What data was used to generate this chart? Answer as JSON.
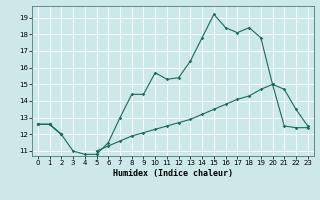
{
  "xlabel": "Humidex (Indice chaleur)",
  "bg_color": "#cce8e8",
  "grid_color": "#ffffff",
  "line_color": "#1a6b5a",
  "xlim": [
    -0.5,
    23.5
  ],
  "ylim": [
    10.7,
    19.7
  ],
  "yticks": [
    11,
    12,
    13,
    14,
    15,
    16,
    17,
    18,
    19
  ],
  "xticks": [
    0,
    1,
    2,
    3,
    4,
    5,
    6,
    7,
    8,
    9,
    10,
    11,
    12,
    13,
    14,
    15,
    16,
    17,
    18,
    19,
    20,
    21,
    22,
    23
  ],
  "line1_x": [
    0,
    1,
    2,
    3,
    4,
    5,
    6,
    7,
    8,
    9,
    10,
    11,
    12,
    13,
    14,
    15,
    16,
    17,
    18,
    19,
    20,
    21,
    22,
    23
  ],
  "line1_y": [
    12.6,
    12.6,
    12.0,
    null,
    null,
    10.8,
    11.5,
    13.0,
    14.4,
    14.4,
    15.7,
    15.3,
    15.4,
    16.4,
    17.8,
    19.2,
    18.4,
    18.1,
    18.4,
    17.8,
    15.0,
    14.7,
    13.5,
    12.5
  ],
  "line2_x": [
    0,
    1,
    2,
    3,
    4,
    5,
    6,
    7,
    8,
    9,
    10,
    11,
    12,
    13,
    14,
    15,
    16,
    17,
    18,
    19,
    20,
    21,
    22,
    23
  ],
  "line2_y": [
    12.6,
    12.6,
    12.0,
    null,
    null,
    11.0,
    11.3,
    11.6,
    11.9,
    12.1,
    12.3,
    12.5,
    12.7,
    12.9,
    13.2,
    13.5,
    13.8,
    14.1,
    14.3,
    14.7,
    15.0,
    12.5,
    12.4,
    12.4
  ],
  "line3_x": [
    0,
    1,
    2,
    3,
    4,
    5
  ],
  "line3_y": [
    12.6,
    12.6,
    12.0,
    11.0,
    10.8,
    10.8
  ]
}
